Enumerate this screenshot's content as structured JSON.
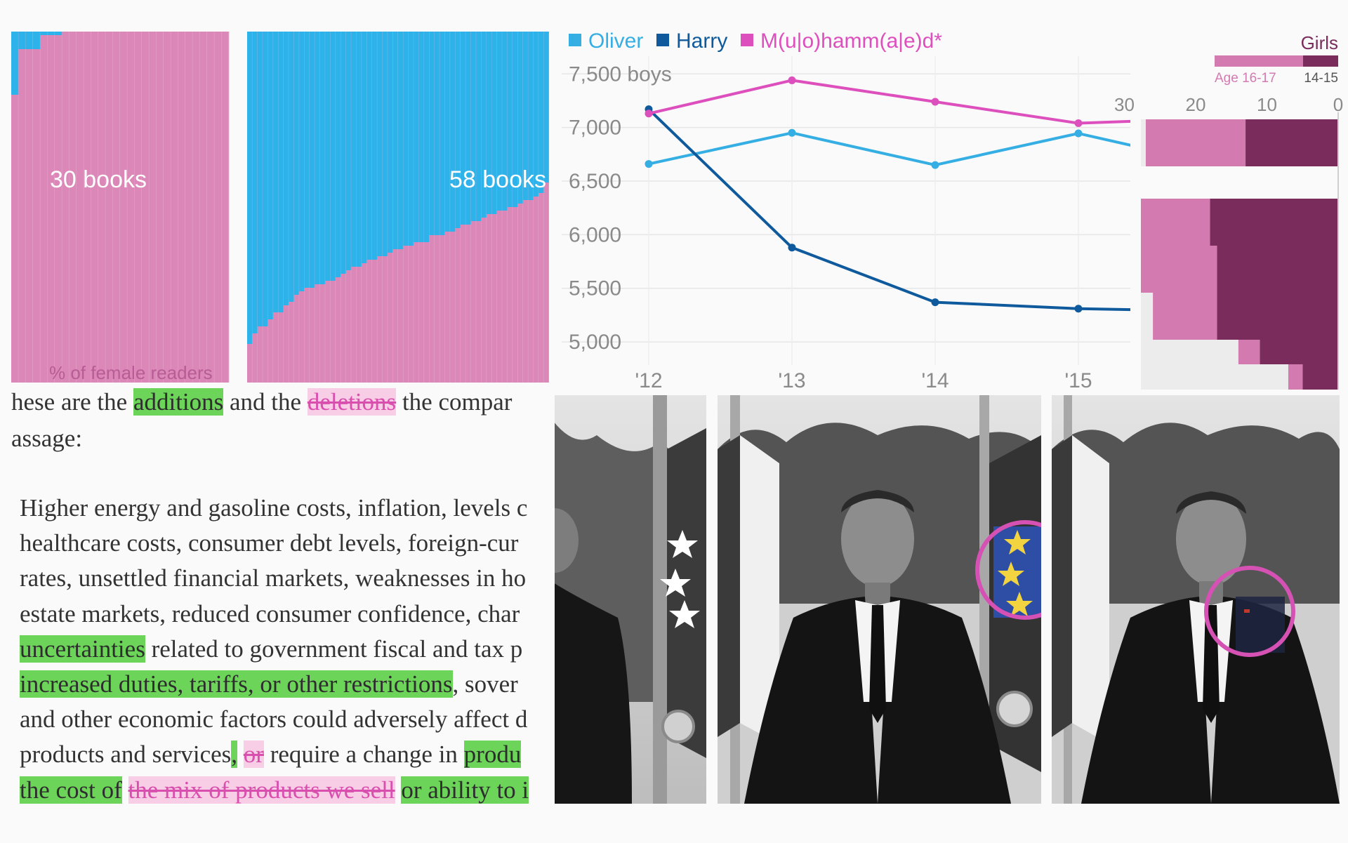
{
  "colors": {
    "female_pink": "#db88b8",
    "male_blue": "#2eb2ea",
    "oliver": "#35aee4",
    "harry": "#0f5a9c",
    "muhammad": "#dc4fbd",
    "girls_light": "#d37ab1",
    "girls_dark": "#7a2d5c",
    "add_green": "#6dd45a",
    "del_pink": "#f8cde6"
  },
  "books_panels": {
    "left_label": "30 books",
    "right_label": "58 books",
    "bottom_label": "% of female readers",
    "left_blue_fractions": [
      0.18,
      0.05,
      0.05,
      0.05,
      0.01,
      0.01,
      0.01,
      0,
      0,
      0,
      0,
      0,
      0,
      0,
      0,
      0,
      0,
      0,
      0,
      0,
      0,
      0,
      0,
      0,
      0,
      0,
      0,
      0,
      0,
      0
    ],
    "right_blue_fractions": [
      0.89,
      0.86,
      0.84,
      0.84,
      0.82,
      0.8,
      0.8,
      0.78,
      0.77,
      0.75,
      0.74,
      0.73,
      0.73,
      0.72,
      0.72,
      0.71,
      0.71,
      0.7,
      0.69,
      0.68,
      0.67,
      0.67,
      0.66,
      0.65,
      0.65,
      0.64,
      0.64,
      0.63,
      0.62,
      0.62,
      0.61,
      0.61,
      0.6,
      0.6,
      0.6,
      0.58,
      0.58,
      0.58,
      0.57,
      0.57,
      0.56,
      0.55,
      0.55,
      0.54,
      0.54,
      0.53,
      0.52,
      0.52,
      0.51,
      0.51,
      0.5,
      0.5,
      0.49,
      0.48,
      0.48,
      0.47,
      0.46,
      0.43
    ]
  },
  "chart_data": {
    "type": "line",
    "x": [
      "'12",
      "'13",
      "'14",
      "'15"
    ],
    "ylim": [
      4850,
      7600
    ],
    "yticks": [
      5000,
      5500,
      6000,
      6500,
      7000,
      7500
    ],
    "ytick_labels": [
      "5,000",
      "5,500",
      "6,000",
      "6,500",
      "7,000",
      "7,500 boys"
    ],
    "legend_placement": "top-left",
    "series": [
      {
        "name": "Oliver",
        "values": [
          6660,
          6950,
          6650,
          6945
        ],
        "trail_end": 6820
      },
      {
        "name": "Harry",
        "values": [
          7170,
          5880,
          5370,
          5310
        ],
        "trail_end": 5300
      },
      {
        "name": "M(u|o)hamm(a|e)d*",
        "values": [
          7130,
          7440,
          7240,
          7040
        ],
        "trail_end": 7060
      }
    ]
  },
  "girls_chart": {
    "title": "Girls",
    "legend_light": "Age 16-17",
    "legend_dark": "14-15",
    "xticks": [
      "30",
      "20",
      "10",
      "0"
    ],
    "rows": [
      {
        "total": 27,
        "light": 14
      },
      {
        "total": 31,
        "light": 13
      },
      {
        "total": 28,
        "light": 11
      },
      {
        "total": 26,
        "light": 9
      },
      {
        "total": 14,
        "light": 3
      },
      {
        "total": 7,
        "light": 2
      }
    ]
  },
  "diff": {
    "intro": [
      {
        "t": "hese are the ",
        "k": "n"
      },
      {
        "t": "additions",
        "k": "a"
      },
      {
        "t": " and the ",
        "k": "n"
      },
      {
        "t": "deletions",
        "k": "d"
      },
      {
        "t": " the compar",
        "k": "n"
      }
    ],
    "intro2": "assage:",
    "lines": [
      [
        {
          "t": "Higher energy and gasoline costs, inflation, levels c",
          "k": "n"
        }
      ],
      [
        {
          "t": "healthcare costs, consumer debt levels, foreign-cur",
          "k": "n"
        }
      ],
      [
        {
          "t": "rates, unsettled financial markets, weaknesses in ho",
          "k": "n"
        }
      ],
      [
        {
          "t": "estate markets, reduced consumer confidence, char",
          "k": "n"
        }
      ],
      [
        {
          "t": "uncertainties",
          "k": "a"
        },
        {
          "t": " related to government fiscal and tax p",
          "k": "n"
        }
      ],
      [
        {
          "t": "increased duties, tariffs, or other restrictions",
          "k": "a"
        },
        {
          "t": ", sover",
          "k": "n"
        }
      ],
      [
        {
          "t": "and other economic factors could adversely affect d",
          "k": "n"
        }
      ],
      [
        {
          "t": "products and services",
          "k": "n"
        },
        {
          "t": ",",
          "k": "a"
        },
        {
          "t": " ",
          "k": "n"
        },
        {
          "t": "or",
          "k": "d"
        },
        {
          "t": " require a change in ",
          "k": "n"
        },
        {
          "t": "produ",
          "k": "a"
        }
      ],
      [
        {
          "t": "the cost of",
          "k": "a"
        },
        {
          "t": " ",
          "k": "n"
        },
        {
          "t": "the mix of products we sell",
          "k": "d"
        },
        {
          "t": " ",
          "k": "n"
        },
        {
          "t": "or ability to i",
          "k": "a"
        }
      ]
    ]
  },
  "photos": {
    "count": 3,
    "highlight": "#d552b4",
    "subjects": [
      "man-in-suit-cropped",
      "man-in-suit-flag-circled",
      "man-in-suit-lapel-circled"
    ]
  }
}
